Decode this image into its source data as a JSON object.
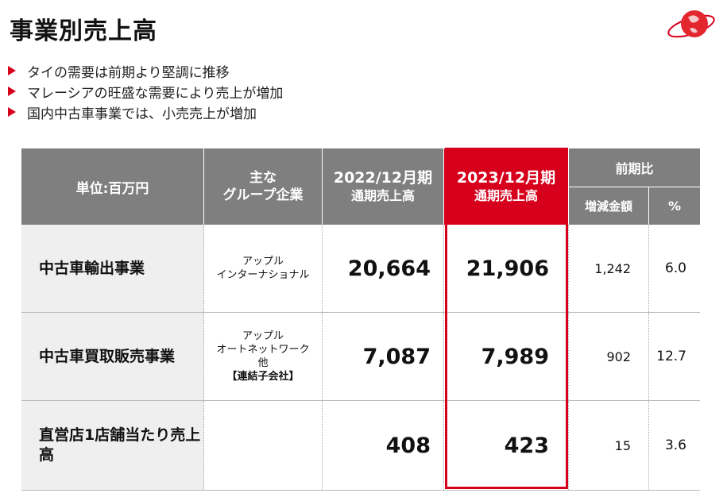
{
  "title": "事業別売上高",
  "bullets": [
    "タイの需要は前期より堅調に推移",
    "マレーシアの旺盛な需要により売上が増加",
    "国内中古車事業では、小売売上が増加"
  ],
  "colors": {
    "accent": "#d6001c",
    "header_gray": "#7f7f7f",
    "row_label_bg": "#efefef"
  },
  "table": {
    "headers": {
      "unit": "単位:百万円",
      "group_line1": "主な",
      "group_line2": "グループ企業",
      "y2022_line1": "2022/12月期",
      "y2022_line2": "通期売上高",
      "y2023_line1": "2023/12月期",
      "y2023_line2": "通期売上高",
      "compare": "前期比",
      "diff": "増減金額",
      "pct": "%"
    },
    "rows": [
      {
        "name": "中古車輸出事業",
        "group": [
          "アップル",
          "インターナショナル"
        ],
        "y2022": "20,664",
        "y2023": "21,906",
        "diff": "1,242",
        "pct": "6.0"
      },
      {
        "name": "中古車買取販売事業",
        "group": [
          "アップル",
          "オートネットワーク",
          "他",
          "【連結子会社】"
        ],
        "y2022": "7,087",
        "y2023": "7,989",
        "diff": "902",
        "pct": "12.7"
      },
      {
        "name": "直営店1店舗当たり売上高",
        "group": [],
        "y2022": "408",
        "y2023": "423",
        "diff": "15",
        "pct": "3.6"
      }
    ]
  }
}
